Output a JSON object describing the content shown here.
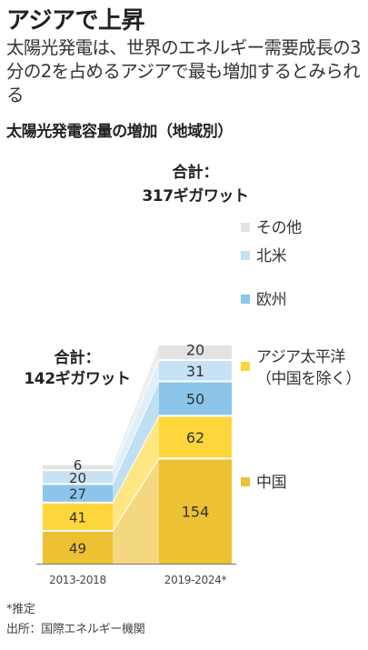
{
  "headline": "アジアで上昇",
  "subtitle": "太陽光発電は、世界のエネルギー需要成長の3分の2を占めるアジアで最も増加するとみられる",
  "chart_data": {
    "type": "bar",
    "stacked": true,
    "title": "太陽光発電容量の増加（地域別）",
    "categories": [
      "2013-2018",
      "2019-2024*"
    ],
    "unit": "ギガワット",
    "series": [
      {
        "name": "中国",
        "values": [
          49,
          154
        ],
        "color": "#EDC133"
      },
      {
        "name": "アジア太平洋（中国を除く）",
        "values": [
          41,
          62
        ],
        "color": "#FDD63B"
      },
      {
        "name": "欧州",
        "values": [
          27,
          50
        ],
        "color": "#8BC6EA"
      },
      {
        "name": "北米",
        "values": [
          20,
          31
        ],
        "color": "#C7E2F5"
      },
      {
        "name": "その他",
        "values": [
          6,
          20
        ],
        "color": "#E3E3E3"
      }
    ],
    "totals": [
      {
        "label": "合計：",
        "value": "142ギガワット"
      },
      {
        "label": "合計：",
        "value": "317ギガワット"
      }
    ],
    "legend_position": "right"
  },
  "notes": [
    "*推定",
    "出所：国際エネルギー機関"
  ]
}
